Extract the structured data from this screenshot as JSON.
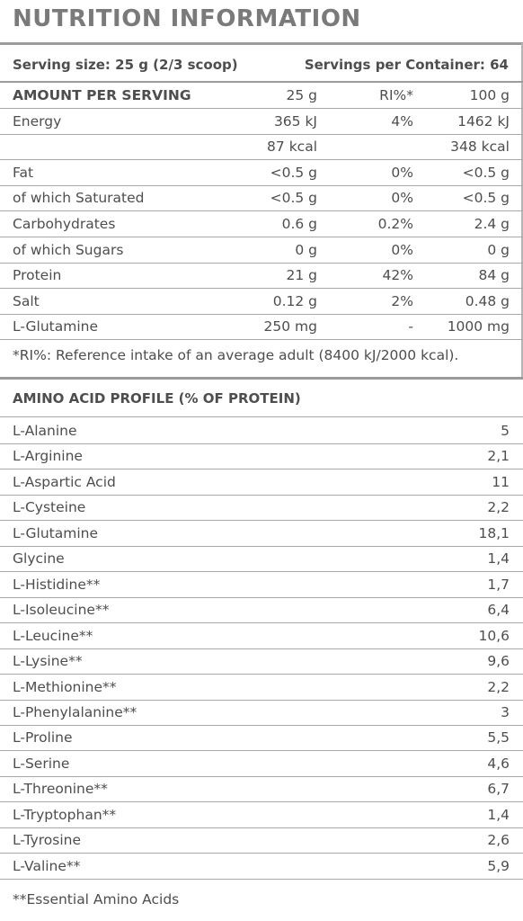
{
  "title": "NUTRITION INFORMATION",
  "serving": {
    "size": "Serving size: 25 g (2/3 scoop)",
    "per_container": "Servings per Container: 64"
  },
  "nutrition_header": [
    "AMOUNT PER SERVING",
    "25 g",
    "RI%*",
    "100 g"
  ],
  "nutrition_rows": [
    [
      "Energy",
      "365 kJ",
      "4%",
      "1462 kJ"
    ],
    [
      "",
      "87 kcal",
      "",
      "348 kcal"
    ],
    [
      "Fat",
      "<0.5 g",
      "0%",
      "<0.5 g"
    ],
    [
      "of which Saturated",
      "<0.5 g",
      "0%",
      "<0.5 g"
    ],
    [
      "Carbohydrates",
      "0.6 g",
      "0.2%",
      "2.4 g"
    ],
    [
      "of which Sugars",
      "0 g",
      "0%",
      "0 g"
    ],
    [
      "Protein",
      "21 g",
      "42%",
      "84 g"
    ],
    [
      "Salt",
      "0.12 g",
      "2%",
      "0.48 g"
    ],
    [
      "L-Glutamine",
      "250 mg",
      "-",
      "1000 mg"
    ]
  ],
  "ri_note": "*RI%: Reference intake of an average adult (8400 kJ/2000 kcal).",
  "amino_title": "AMINO ACID PROFILE (% OF PROTEIN)",
  "amino_rows": [
    [
      "L-Alanine",
      "5"
    ],
    [
      "L-Arginine",
      "2,1"
    ],
    [
      "L-Aspartic Acid",
      "11"
    ],
    [
      "L-Cysteine",
      "2,2"
    ],
    [
      "L-Glutamine",
      "18,1"
    ],
    [
      "Glycine",
      "1,4"
    ],
    [
      "L-Histidine**",
      "1,7"
    ],
    [
      "L-Isoleucine**",
      "6,4"
    ],
    [
      "L-Leucine**",
      "10,6"
    ],
    [
      "L-Lysine**",
      "9,6"
    ],
    [
      "L-Methionine**",
      "2,2"
    ],
    [
      "L-Phenylalanine**",
      "3"
    ],
    [
      "L-Proline",
      "5,5"
    ],
    [
      "L-Serine",
      "4,6"
    ],
    [
      "L-Threonine**",
      "6,7"
    ],
    [
      "L-Tryptophan**",
      "1,4"
    ],
    [
      "L-Tyrosine",
      "2,6"
    ],
    [
      "L-Valine**",
      "5,9"
    ]
  ],
  "essential_note": "**Essential Amino Acids"
}
